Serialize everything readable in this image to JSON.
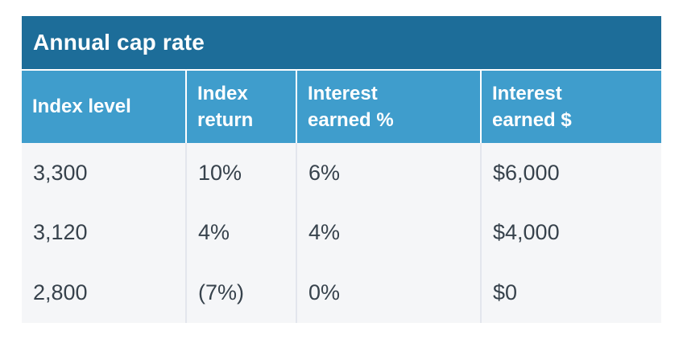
{
  "chart_data": {
    "type": "table",
    "title": "Annual cap rate",
    "columns": [
      "Index level",
      "Index\nreturn",
      "Interest\nearned %",
      "Interest\nearned $"
    ],
    "columns_plain": [
      "Index level",
      "Index return",
      "Interest earned %",
      "Interest earned $"
    ],
    "rows": [
      [
        "3,300",
        "10%",
        "6%",
        "$6,000"
      ],
      [
        "3,120",
        "4%",
        "4%",
        "$4,000"
      ],
      [
        "2,800",
        "(7%)",
        "0%",
        "$0"
      ]
    ]
  },
  "colors": {
    "title_bar_bg": "#1d6d99",
    "header_bg": "#3f9dcc",
    "body_bg": "#f5f6f8",
    "body_text": "#37424c",
    "header_text": "#ffffff",
    "divider": "#e3e6ed"
  }
}
